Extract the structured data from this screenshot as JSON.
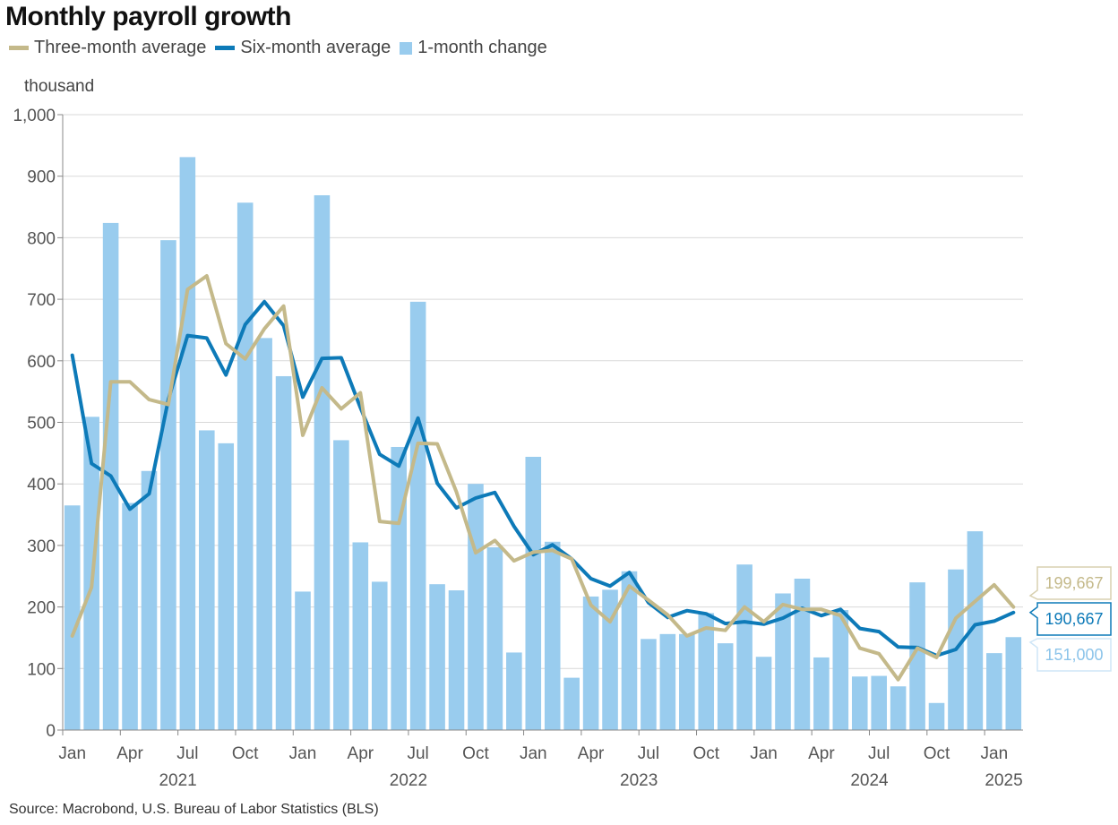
{
  "chart_data": {
    "type": "bar",
    "title": "Monthly payroll growth",
    "ylabel": "thousand",
    "ylim": [
      0,
      1000
    ],
    "yticks": [
      0,
      100,
      200,
      300,
      400,
      500,
      600,
      700,
      800,
      900,
      1000
    ],
    "ytick_labels": [
      "0",
      "100",
      "200",
      "300",
      "400",
      "500",
      "600",
      "700",
      "800",
      "900",
      "1,000"
    ],
    "x_month_ticks": [
      {
        "index": 0,
        "label": "Jan"
      },
      {
        "index": 3,
        "label": "Apr"
      },
      {
        "index": 6,
        "label": "Jul"
      },
      {
        "index": 9,
        "label": "Oct"
      },
      {
        "index": 12,
        "label": "Jan"
      },
      {
        "index": 15,
        "label": "Apr"
      },
      {
        "index": 18,
        "label": "Jul"
      },
      {
        "index": 21,
        "label": "Oct"
      },
      {
        "index": 24,
        "label": "Jan"
      },
      {
        "index": 27,
        "label": "Apr"
      },
      {
        "index": 30,
        "label": "Jul"
      },
      {
        "index": 33,
        "label": "Oct"
      },
      {
        "index": 36,
        "label": "Jan"
      },
      {
        "index": 39,
        "label": "Apr"
      },
      {
        "index": 42,
        "label": "Jul"
      },
      {
        "index": 45,
        "label": "Oct"
      },
      {
        "index": 48,
        "label": "Jan"
      }
    ],
    "x_year_labels": [
      {
        "index": 5.5,
        "label": "2021"
      },
      {
        "index": 17.5,
        "label": "2022"
      },
      {
        "index": 29.5,
        "label": "2023"
      },
      {
        "index": 41.5,
        "label": "2024"
      },
      {
        "index": 48.5,
        "label": "2025"
      }
    ],
    "legend": [
      "Three-month average",
      "Six-month average",
      "1-month change"
    ],
    "series": [
      {
        "name": "1-month change",
        "kind": "bar",
        "color": "#99ccee",
        "values": [
          365,
          509,
          824,
          369,
          421,
          796,
          931,
          487,
          466,
          857,
          637,
          575,
          225,
          869,
          471,
          305,
          241,
          460,
          696,
          237,
          227,
          400,
          297,
          126,
          444,
          306,
          85,
          217,
          228,
          258,
          148,
          156,
          156,
          190,
          141,
          269,
          119,
          222,
          246,
          118,
          195,
          87,
          88,
          71,
          240,
          44,
          261,
          323,
          125,
          151
        ]
      },
      {
        "name": "Three-month average",
        "kind": "line",
        "color": "#c4b98a",
        "values": [
          153,
          232,
          566,
          566,
          537,
          529,
          716,
          738,
          628,
          603,
          652,
          689,
          479,
          556,
          522,
          548,
          339,
          336,
          466,
          465,
          387,
          288,
          308,
          275,
          289,
          292,
          278,
          203,
          176,
          234,
          211,
          187,
          153,
          166,
          162,
          200,
          176,
          204,
          196,
          196,
          186,
          133,
          124,
          82,
          133,
          118,
          182,
          209,
          236,
          200
        ]
      },
      {
        "name": "Six-month average",
        "kind": "line",
        "color": "#0d7ab8",
        "values": [
          609,
          433,
          413,
          359,
          384,
          537,
          641,
          637,
          577,
          659,
          696,
          657,
          541,
          604,
          605,
          524,
          448,
          429,
          507,
          401,
          361,
          377,
          386,
          331,
          285,
          301,
          278,
          246,
          234,
          256,
          207,
          183,
          194,
          189,
          173,
          176,
          172,
          182,
          198,
          186,
          196,
          165,
          160,
          135,
          134,
          121,
          131,
          171,
          177,
          191
        ]
      }
    ],
    "end_labels": {
      "three_month": "199,667",
      "six_month": "190,667",
      "one_month": "151,000"
    }
  },
  "source": "Source: Macrobond, U.S. Bureau of Labor Statistics (BLS)"
}
